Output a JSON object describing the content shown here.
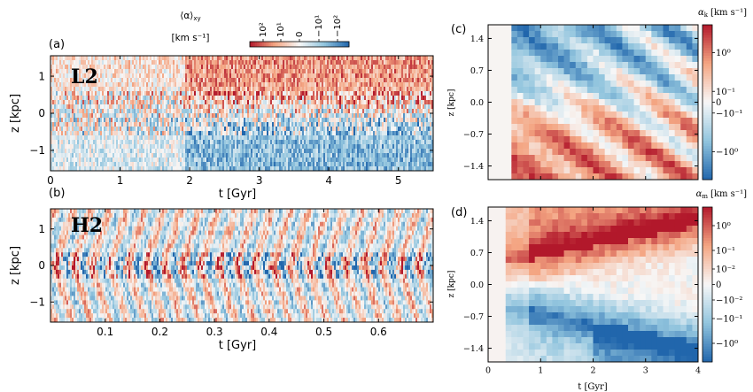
{
  "colors": {
    "red_strong": "#b2182b",
    "red_light": "#f4a582",
    "neutral": "#f7f7f7",
    "blue_light": "#92c5de",
    "blue_strong": "#2166ac",
    "axis": "#000000"
  },
  "top_colorbar": {
    "title_line1": "⟨α⟩",
    "title_sub": "xy",
    "title_line2": "[km s⁻¹]",
    "ticks": [
      "10²",
      "10¹",
      "0",
      "−10¹",
      "−10²"
    ]
  },
  "chart_data": [
    {
      "id": "a",
      "type": "heatmap",
      "panel_label": "(a)",
      "run_label": "L2",
      "xlabel": "t [Gyr]",
      "ylabel": "z [kpc]",
      "xlim": [
        0,
        5.5
      ],
      "ylim": [
        -1.55,
        1.55
      ],
      "xticks": [
        0,
        1,
        2,
        3,
        4,
        5
      ],
      "yticks": [
        -1,
        0,
        1
      ],
      "xtick_labels": [
        "0",
        "1",
        "2",
        "3",
        "4",
        "5"
      ],
      "ytick_labels": [
        "−1",
        "0",
        "1"
      ],
      "description_pattern": "upper half predominantly positive (red), lower half predominantly negative (blue) after ~2 Gyr; noisy mixture before"
    },
    {
      "id": "b",
      "type": "heatmap",
      "panel_label": "(b)",
      "run_label": "H2",
      "xlabel": "t [Gyr]",
      "ylabel": "z [kpc]",
      "xlim": [
        0,
        0.7
      ],
      "ylim": [
        -1.55,
        1.55
      ],
      "xticks": [
        0.1,
        0.2,
        0.3,
        0.4,
        0.5,
        0.6
      ],
      "yticks": [
        -1,
        0,
        1
      ],
      "xtick_labels": [
        "0.1",
        "0.2",
        "0.3",
        "0.4",
        "0.5",
        "0.6"
      ],
      "ytick_labels": [
        "−1",
        "0",
        "1"
      ],
      "description_pattern": "periodic outbursts every ~0.1 Gyr with strong positive and negative filaments"
    },
    {
      "id": "c",
      "type": "heatmap",
      "panel_label": "(c)",
      "xlabel": "",
      "ylabel": "z [kpc]",
      "xlim": [
        0,
        4
      ],
      "ylim": [
        -1.7,
        1.7
      ],
      "yticks": [
        1.4,
        0.7,
        0.0,
        -0.7,
        -1.4
      ],
      "ytick_labels": [
        "1.4",
        "0.7",
        "0.0",
        "−0.7",
        "−1.4"
      ],
      "colorbar": {
        "label": "αk [km s⁻¹]",
        "label_main": "α",
        "label_sub": "k",
        "label_unit": "[km s⁻¹]",
        "ticks": [
          "10⁰",
          "10⁻¹",
          "0",
          "−10⁻¹",
          "−10⁰"
        ]
      }
    },
    {
      "id": "d",
      "type": "heatmap",
      "panel_label": "(d)",
      "xlabel": "t [Gyr]",
      "ylabel": "z [kpc]",
      "xlim": [
        0,
        4
      ],
      "ylim": [
        -1.7,
        1.7
      ],
      "xticks": [
        0,
        1,
        2,
        3,
        4
      ],
      "xtick_labels": [
        "0",
        "1",
        "2",
        "3",
        "4"
      ],
      "yticks": [
        1.4,
        0.7,
        0.0,
        -0.7,
        -1.4
      ],
      "ytick_labels": [
        "1.4",
        "0.7",
        "0.0",
        "−0.7",
        "−1.4"
      ],
      "colorbar": {
        "label": "αm [km s⁻¹]",
        "label_main": "α",
        "label_sub": "m",
        "label_unit": "[km s⁻¹]",
        "ticks": [
          "10⁰",
          "10⁻¹",
          "10⁻²",
          "0",
          "−10⁻²",
          "−10⁻¹",
          "−10⁰"
        ]
      }
    }
  ]
}
